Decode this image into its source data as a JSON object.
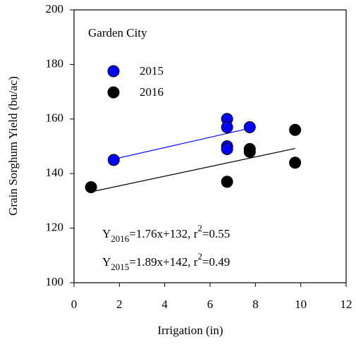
{
  "chart_data": {
    "type": "scatter",
    "xlabel": "Irrigation (in)",
    "ylabel": "Grain Sorghum Yield (bu/ac)",
    "legend_title": "Garden City",
    "legend": "upper-left",
    "xlim": [
      0,
      12
    ],
    "ylim": [
      100,
      200
    ],
    "xticks": [
      0,
      2,
      4,
      6,
      8,
      10,
      12
    ],
    "yticks": [
      100,
      120,
      140,
      160,
      180,
      200
    ],
    "series": [
      {
        "name": "2015",
        "color": "#0000ff",
        "x": [
          1.75,
          6.75,
          6.75,
          6.75,
          6.75,
          7.75
        ],
        "values": [
          145,
          160,
          157,
          150,
          149,
          157
        ],
        "fit": {
          "x": [
            1.75,
            7.75
          ],
          "values": [
            145.3,
            156.6
          ]
        }
      },
      {
        "name": "2016",
        "color": "#000000",
        "x": [
          0.75,
          6.75,
          7.75,
          7.75,
          9.75,
          9.75
        ],
        "values": [
          135,
          137,
          149,
          148,
          156,
          144
        ],
        "fit": {
          "x": [
            0.75,
            9.75
          ],
          "values": [
            133.3,
            149.2
          ]
        }
      }
    ],
    "annotations": [
      [
        {
          "text": "Y"
        },
        {
          "text": "2016",
          "shift": "sub"
        },
        {
          "text": "=1.76x+132, r"
        },
        {
          "text": "2",
          "shift": "super"
        },
        {
          "text": "=0.55"
        }
      ],
      [
        {
          "text": "Y"
        },
        {
          "text": "2015",
          "shift": "sub"
        },
        {
          "text": "=1.89x+142, r"
        },
        {
          "text": "2",
          "shift": "super"
        },
        {
          "text": "=0.49"
        }
      ]
    ]
  }
}
